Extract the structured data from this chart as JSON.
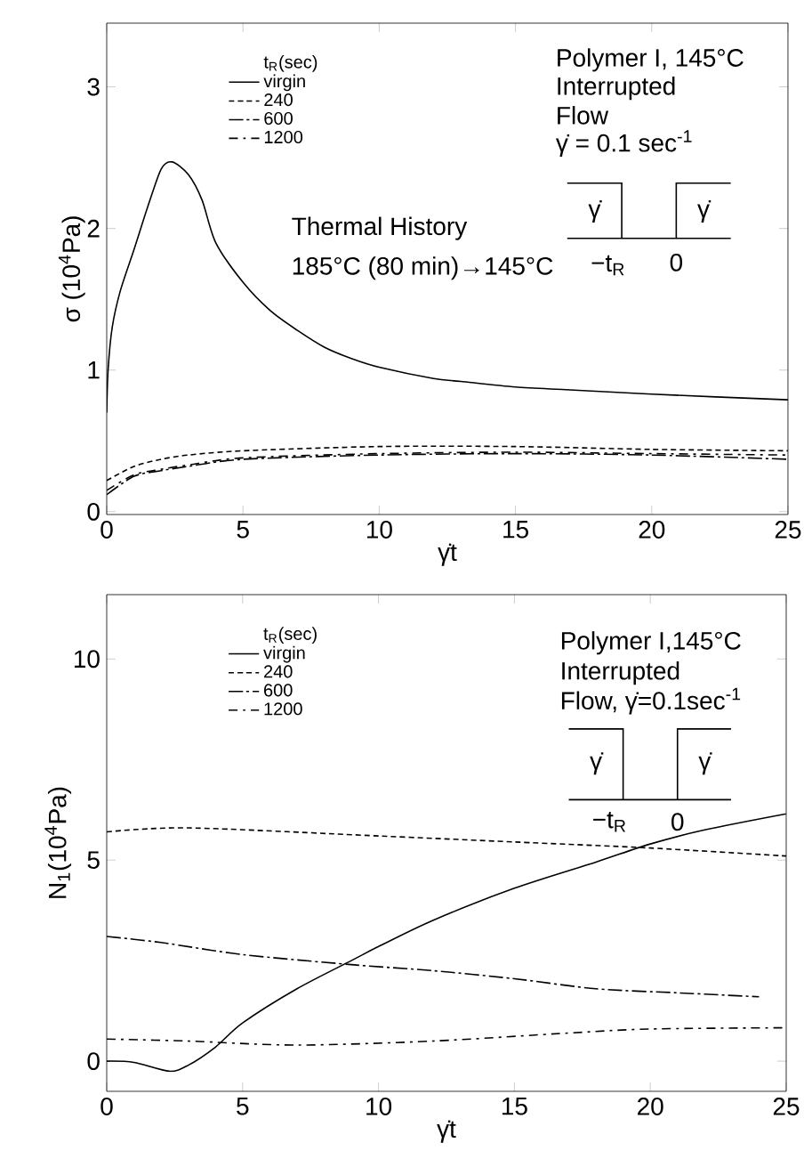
{
  "chart_data": [
    {
      "type": "line",
      "xlabel": "γ̇t",
      "ylabel": "σ (10$^{4}$Pa)",
      "legend_title": "t$_{R}$(sec)",
      "legend": "top left",
      "xlim": [
        0,
        25
      ],
      "ylim": [
        -0.02,
        3.45
      ],
      "xticks": [
        0,
        5,
        10,
        15,
        20,
        25
      ],
      "yticks": [
        0,
        1,
        2,
        3
      ],
      "annotations": [
        "Polymer I, 145°C",
        "Interrupted",
        "Flow",
        "γ̇ = 0.1 sec$^{-1}$",
        "Thermal History",
        "185°C (80 min)→145°C",
        "γ̇",
        "γ̇",
        "−t$_{R}$",
        "0"
      ],
      "series": [
        {
          "name": "virgin",
          "color": "#000000",
          "line_style": "solid",
          "x": [
            0,
            0.05,
            0.2,
            0.5,
            1,
            1.5,
            2,
            2.4,
            3,
            3.5,
            4,
            5,
            6,
            7,
            8,
            9,
            10,
            12,
            13,
            15,
            17,
            20,
            25
          ],
          "values": [
            0.7,
            1.0,
            1.3,
            1.56,
            1.85,
            2.15,
            2.42,
            2.47,
            2.38,
            2.2,
            1.9,
            1.62,
            1.42,
            1.28,
            1.16,
            1.08,
            1.02,
            0.94,
            0.92,
            0.88,
            0.86,
            0.83,
            0.79
          ]
        },
        {
          "name": "240",
          "color": "#000000",
          "line_style": "dashed",
          "x": [
            0,
            1,
            2,
            3,
            5,
            10,
            15,
            20,
            25
          ],
          "values": [
            0.22,
            0.32,
            0.37,
            0.4,
            0.43,
            0.46,
            0.46,
            0.44,
            0.43
          ]
        },
        {
          "name": "600",
          "color": "#000000",
          "line_style": "long dash-dot",
          "x": [
            0,
            1,
            2,
            3,
            5,
            10,
            15,
            20,
            25
          ],
          "values": [
            0.12,
            0.25,
            0.29,
            0.32,
            0.37,
            0.4,
            0.41,
            0.4,
            0.37
          ]
        },
        {
          "name": "1200",
          "color": "#000000",
          "line_style": "dash-dot",
          "x": [
            0,
            1,
            2,
            3,
            5,
            10,
            15,
            20,
            25
          ],
          "values": [
            0.15,
            0.26,
            0.3,
            0.33,
            0.38,
            0.41,
            0.42,
            0.41,
            0.4
          ]
        }
      ]
    },
    {
      "type": "line",
      "xlabel": "γ̇t",
      "ylabel": "N$_{1}$(10$^{4}$Pa)",
      "legend_title": "t$_{R}$(sec)",
      "legend": "top left",
      "xlim": [
        0,
        25
      ],
      "ylim": [
        -0.75,
        11.6
      ],
      "xticks": [
        0,
        5,
        10,
        15,
        20,
        25
      ],
      "yticks": [
        0,
        5,
        10
      ],
      "annotations": [
        "Polymer I,145°C",
        "Interrupted",
        "Flow, γ̇=0.1sec$^{-1}$",
        "γ̇",
        "γ̇",
        "−t$_{R}$",
        "0"
      ],
      "series": [
        {
          "name": "virgin",
          "color": "#000000",
          "line_style": "solid",
          "x": [
            0,
            1,
            2.3,
            3,
            4,
            5,
            7,
            9,
            10,
            12,
            15,
            18,
            20,
            22,
            25
          ],
          "values": [
            0.0,
            -0.03,
            -0.25,
            -0.1,
            0.35,
            0.95,
            1.8,
            2.5,
            2.85,
            3.5,
            4.3,
            4.95,
            5.4,
            5.75,
            6.15
          ]
        },
        {
          "name": "240",
          "color": "#000000",
          "line_style": "dashed",
          "x": [
            0,
            3,
            10,
            15,
            20,
            25
          ],
          "values": [
            5.7,
            5.8,
            5.6,
            5.45,
            5.3,
            5.1
          ]
        },
        {
          "name": "600",
          "color": "#000000",
          "line_style": "long dash-dot",
          "x": [
            0,
            2,
            5,
            9,
            12,
            15,
            18,
            21,
            24
          ],
          "values": [
            3.1,
            2.95,
            2.65,
            2.4,
            2.25,
            2.05,
            1.8,
            1.7,
            1.6
          ]
        },
        {
          "name": "1200",
          "color": "#000000",
          "line_style": "dash-dot",
          "x": [
            0,
            3,
            7,
            12,
            17,
            20,
            25
          ],
          "values": [
            0.55,
            0.5,
            0.4,
            0.5,
            0.7,
            0.8,
            0.83
          ]
        }
      ]
    }
  ]
}
